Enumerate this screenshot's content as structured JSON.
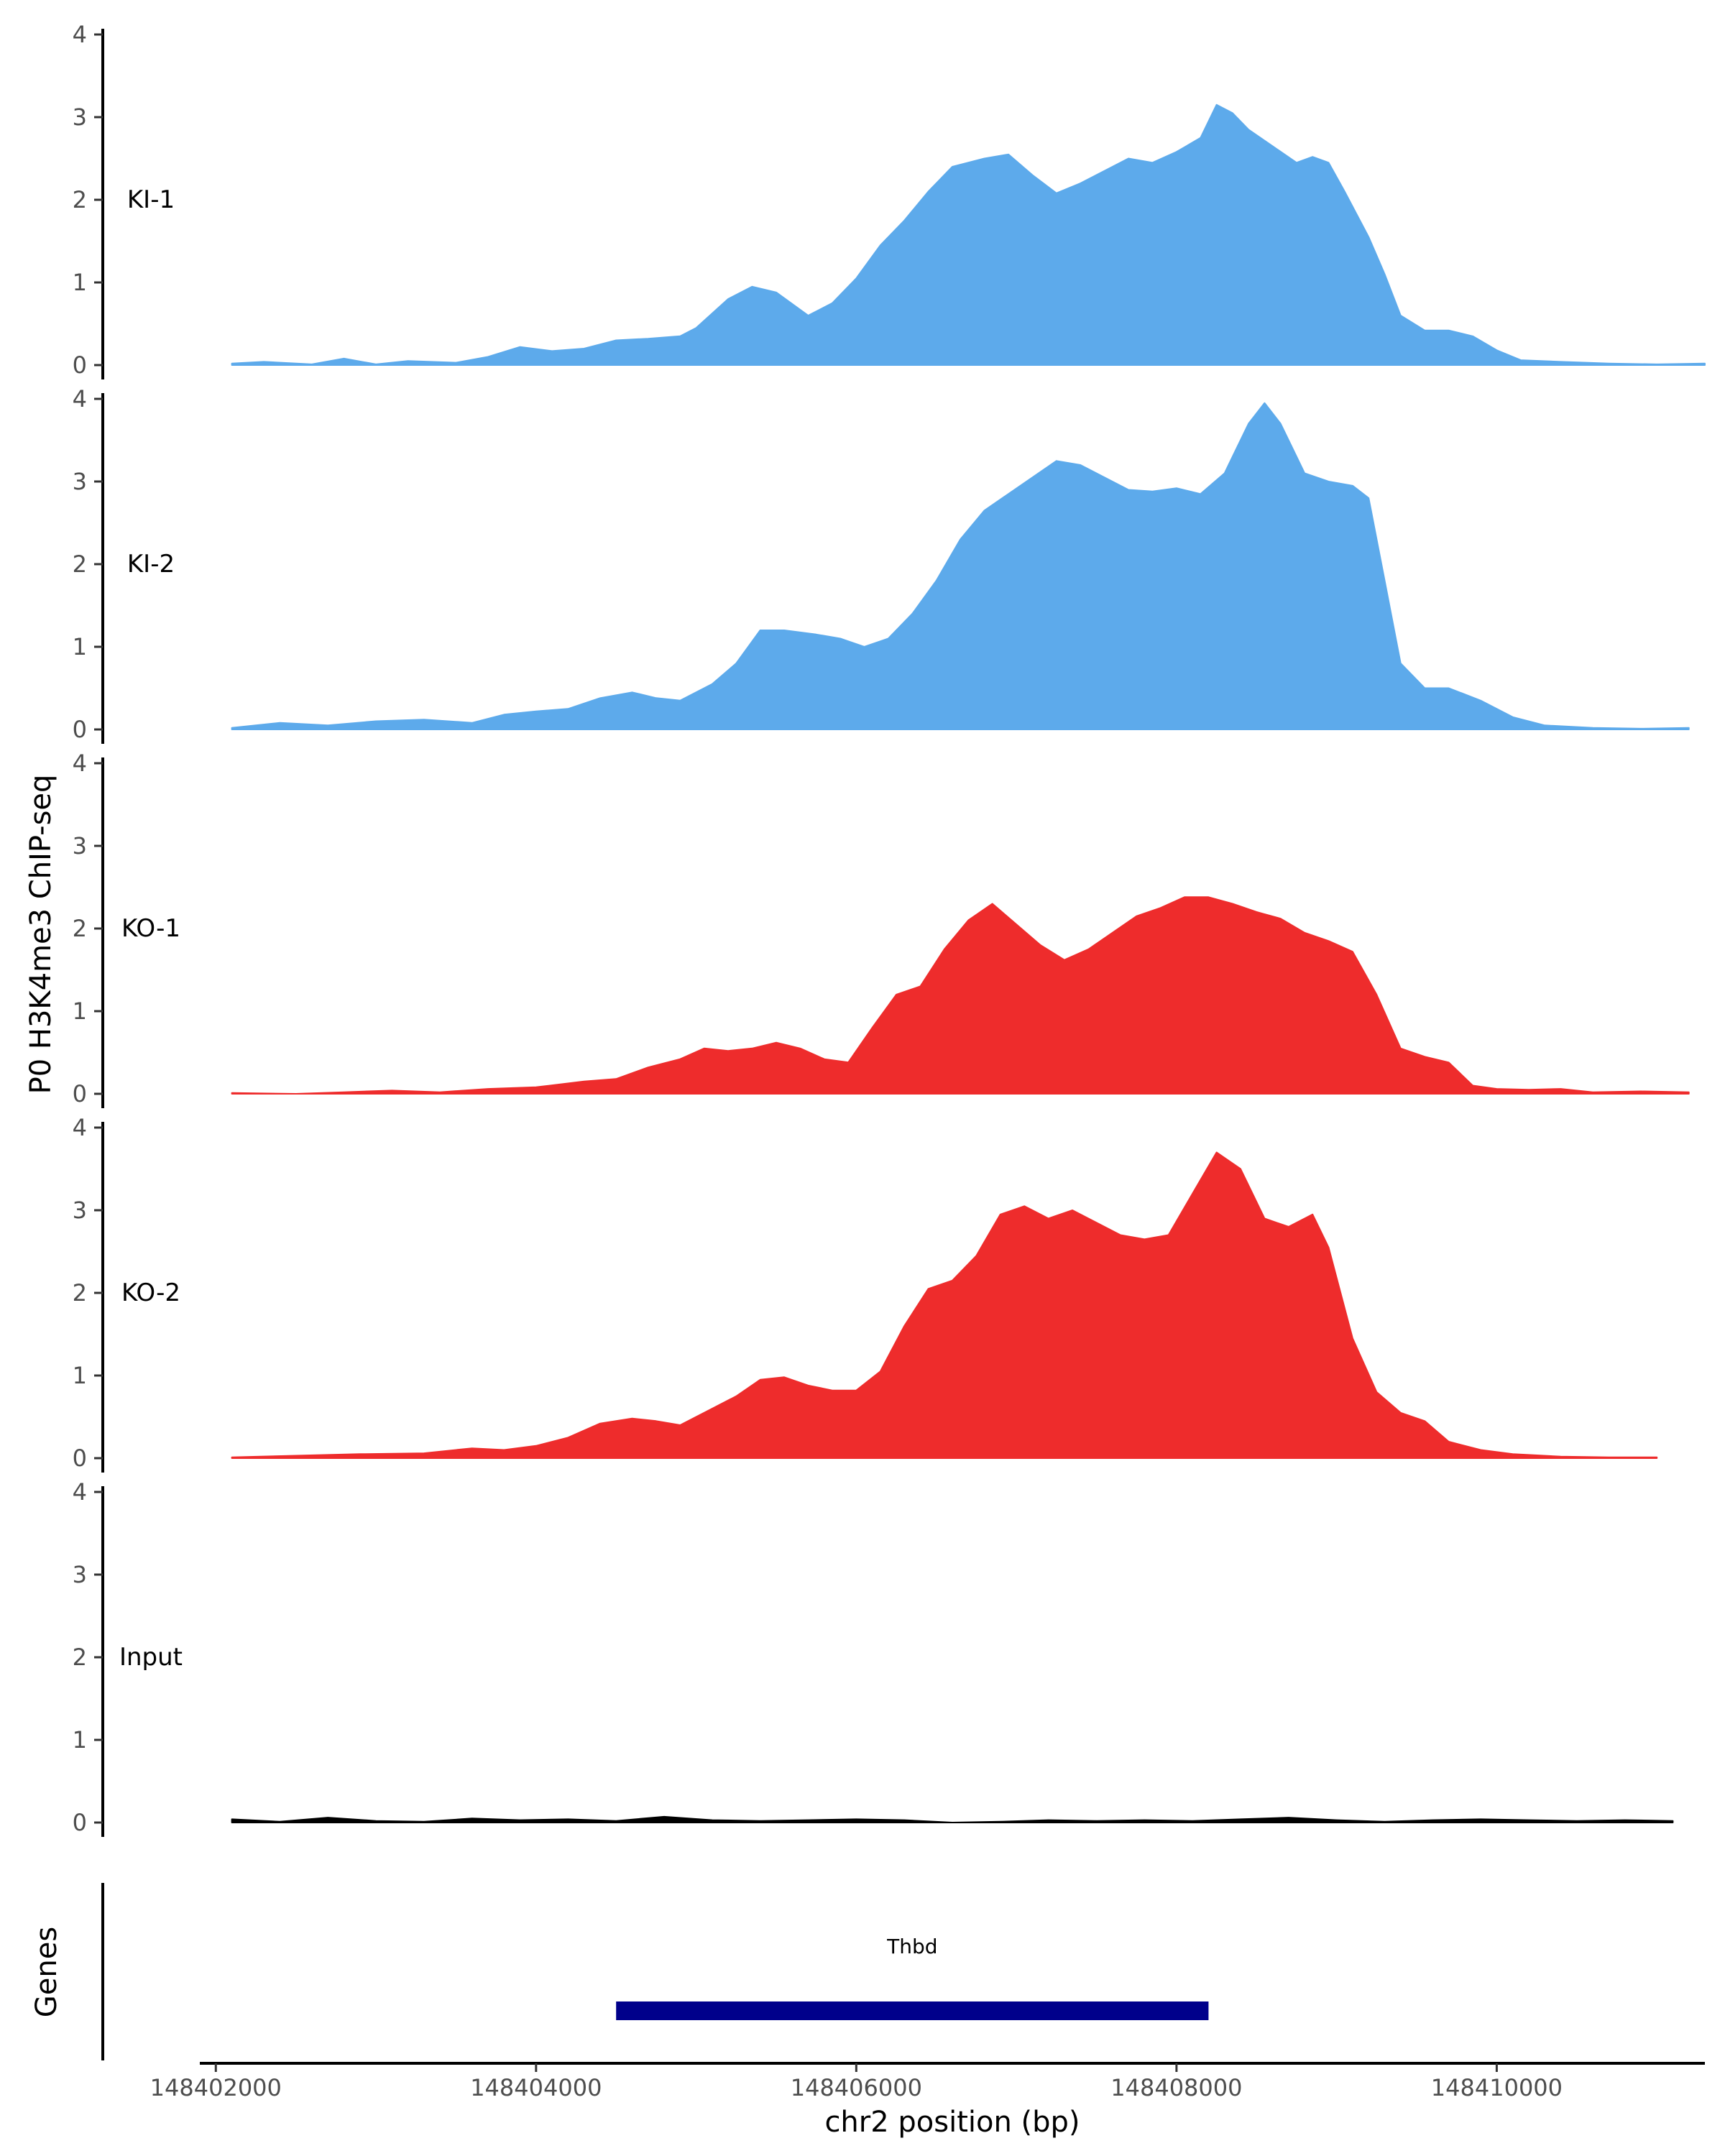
{
  "chart_data": {
    "type": "area",
    "ylabel": "P0 H3K4me3 ChIP-seq",
    "xlabel": "chr2 position (bp)",
    "ylim": [
      0,
      4
    ],
    "yticks": [
      "0",
      "1",
      "2",
      "3",
      "4"
    ],
    "xlim": [
      148401900,
      148411300
    ],
    "xticks": [
      {
        "value": 148402000,
        "label": "148402000"
      },
      {
        "value": 148404000,
        "label": "148404000"
      },
      {
        "value": 148406000,
        "label": "148406000"
      },
      {
        "value": 148408000,
        "label": "148408000"
      },
      {
        "value": 148410000,
        "label": "148410000"
      }
    ],
    "tracks": [
      {
        "name": "KI-1",
        "color": "#5DAAEB",
        "points": [
          [
            148402100,
            0.02
          ],
          [
            148402300,
            0.04
          ],
          [
            148402600,
            0.01
          ],
          [
            148402800,
            0.08
          ],
          [
            148403000,
            0.01
          ],
          [
            148403200,
            0.05
          ],
          [
            148403500,
            0.03
          ],
          [
            148403700,
            0.1
          ],
          [
            148403900,
            0.22
          ],
          [
            148404100,
            0.17
          ],
          [
            148404300,
            0.2
          ],
          [
            148404500,
            0.3
          ],
          [
            148404700,
            0.32
          ],
          [
            148404900,
            0.35
          ],
          [
            148405000,
            0.45
          ],
          [
            148405200,
            0.8
          ],
          [
            148405350,
            0.95
          ],
          [
            148405500,
            0.88
          ],
          [
            148405700,
            0.6
          ],
          [
            148405850,
            0.75
          ],
          [
            148406000,
            1.05
          ],
          [
            148406150,
            1.45
          ],
          [
            148406300,
            1.75
          ],
          [
            148406450,
            2.1
          ],
          [
            148406600,
            2.4
          ],
          [
            148406800,
            2.5
          ],
          [
            148406950,
            2.55
          ],
          [
            148407100,
            2.3
          ],
          [
            148407250,
            2.08
          ],
          [
            148407400,
            2.2
          ],
          [
            148407550,
            2.35
          ],
          [
            148407700,
            2.5
          ],
          [
            148407850,
            2.45
          ],
          [
            148408000,
            2.58
          ],
          [
            148408150,
            2.75
          ],
          [
            148408250,
            3.15
          ],
          [
            148408350,
            3.05
          ],
          [
            148408450,
            2.85
          ],
          [
            148408600,
            2.65
          ],
          [
            148408750,
            2.45
          ],
          [
            148408850,
            2.52
          ],
          [
            148408950,
            2.45
          ],
          [
            148409050,
            2.1
          ],
          [
            148409200,
            1.55
          ],
          [
            148409300,
            1.1
          ],
          [
            148409400,
            0.6
          ],
          [
            148409550,
            0.42
          ],
          [
            148409700,
            0.42
          ],
          [
            148409850,
            0.35
          ],
          [
            148410000,
            0.18
          ],
          [
            148410150,
            0.06
          ],
          [
            148410400,
            0.04
          ],
          [
            148410700,
            0.02
          ],
          [
            148411000,
            0.01
          ],
          [
            148411300,
            0.02
          ]
        ]
      },
      {
        "name": "KI-2",
        "color": "#5DAAEB",
        "points": [
          [
            148402100,
            0.02
          ],
          [
            148402400,
            0.08
          ],
          [
            148402700,
            0.05
          ],
          [
            148403000,
            0.1
          ],
          [
            148403300,
            0.12
          ],
          [
            148403600,
            0.08
          ],
          [
            148403800,
            0.18
          ],
          [
            148404000,
            0.22
          ],
          [
            148404200,
            0.25
          ],
          [
            148404400,
            0.38
          ],
          [
            148404600,
            0.45
          ],
          [
            148404750,
            0.38
          ],
          [
            148404900,
            0.35
          ],
          [
            148405100,
            0.55
          ],
          [
            148405250,
            0.8
          ],
          [
            148405400,
            1.2
          ],
          [
            148405550,
            1.2
          ],
          [
            148405750,
            1.15
          ],
          [
            148405900,
            1.1
          ],
          [
            148406050,
            1.0
          ],
          [
            148406200,
            1.1
          ],
          [
            148406350,
            1.4
          ],
          [
            148406500,
            1.8
          ],
          [
            148406650,
            2.3
          ],
          [
            148406800,
            2.65
          ],
          [
            148406950,
            2.85
          ],
          [
            148407100,
            3.05
          ],
          [
            148407250,
            3.25
          ],
          [
            148407400,
            3.2
          ],
          [
            148407550,
            3.05
          ],
          [
            148407700,
            2.9
          ],
          [
            148407850,
            2.88
          ],
          [
            148408000,
            2.92
          ],
          [
            148408150,
            2.85
          ],
          [
            148408300,
            3.1
          ],
          [
            148408450,
            3.7
          ],
          [
            148408550,
            3.95
          ],
          [
            148408650,
            3.7
          ],
          [
            148408800,
            3.1
          ],
          [
            148408950,
            3.0
          ],
          [
            148409100,
            2.95
          ],
          [
            148409200,
            2.8
          ],
          [
            148409300,
            1.8
          ],
          [
            148409400,
            0.8
          ],
          [
            148409550,
            0.5
          ],
          [
            148409700,
            0.5
          ],
          [
            148409900,
            0.35
          ],
          [
            148410100,
            0.15
          ],
          [
            148410300,
            0.05
          ],
          [
            148410600,
            0.02
          ],
          [
            148410900,
            0.01
          ],
          [
            148411200,
            0.02
          ]
        ]
      },
      {
        "name": "KO-1",
        "color": "#EE2C2C",
        "points": [
          [
            148402100,
            0.01
          ],
          [
            148402500,
            0.0
          ],
          [
            148402800,
            0.02
          ],
          [
            148403100,
            0.04
          ],
          [
            148403400,
            0.02
          ],
          [
            148403700,
            0.06
          ],
          [
            148404000,
            0.08
          ],
          [
            148404300,
            0.15
          ],
          [
            148404500,
            0.18
          ],
          [
            148404700,
            0.32
          ],
          [
            148404900,
            0.42
          ],
          [
            148405050,
            0.55
          ],
          [
            148405200,
            0.52
          ],
          [
            148405350,
            0.55
          ],
          [
            148405500,
            0.62
          ],
          [
            148405650,
            0.55
          ],
          [
            148405800,
            0.42
          ],
          [
            148405950,
            0.38
          ],
          [
            148406100,
            0.8
          ],
          [
            148406250,
            1.2
          ],
          [
            148406400,
            1.3
          ],
          [
            148406550,
            1.75
          ],
          [
            148406700,
            2.1
          ],
          [
            148406850,
            2.3
          ],
          [
            148407000,
            2.05
          ],
          [
            148407150,
            1.8
          ],
          [
            148407300,
            1.62
          ],
          [
            148407450,
            1.75
          ],
          [
            148407600,
            1.95
          ],
          [
            148407750,
            2.15
          ],
          [
            148407900,
            2.25
          ],
          [
            148408050,
            2.38
          ],
          [
            148408200,
            2.38
          ],
          [
            148408350,
            2.3
          ],
          [
            148408500,
            2.2
          ],
          [
            148408650,
            2.12
          ],
          [
            148408800,
            1.95
          ],
          [
            148408950,
            1.85
          ],
          [
            148409100,
            1.72
          ],
          [
            148409250,
            1.2
          ],
          [
            148409400,
            0.55
          ],
          [
            148409550,
            0.45
          ],
          [
            148409700,
            0.38
          ],
          [
            148409850,
            0.1
          ],
          [
            148410000,
            0.06
          ],
          [
            148410200,
            0.05
          ],
          [
            148410400,
            0.06
          ],
          [
            148410600,
            0.02
          ],
          [
            148410900,
            0.03
          ],
          [
            148411200,
            0.02
          ]
        ]
      },
      {
        "name": "KO-2",
        "color": "#EE2C2C",
        "points": [
          [
            148402100,
            0.01
          ],
          [
            148402500,
            0.03
          ],
          [
            148402900,
            0.05
          ],
          [
            148403300,
            0.06
          ],
          [
            148403600,
            0.12
          ],
          [
            148403800,
            0.1
          ],
          [
            148404000,
            0.15
          ],
          [
            148404200,
            0.25
          ],
          [
            148404400,
            0.42
          ],
          [
            148404600,
            0.48
          ],
          [
            148404750,
            0.45
          ],
          [
            148404900,
            0.4
          ],
          [
            148405100,
            0.6
          ],
          [
            148405250,
            0.75
          ],
          [
            148405400,
            0.95
          ],
          [
            148405550,
            0.98
          ],
          [
            148405700,
            0.88
          ],
          [
            148405850,
            0.82
          ],
          [
            148406000,
            0.82
          ],
          [
            148406150,
            1.05
          ],
          [
            148406300,
            1.6
          ],
          [
            148406450,
            2.05
          ],
          [
            148406600,
            2.15
          ],
          [
            148406750,
            2.45
          ],
          [
            148406900,
            2.95
          ],
          [
            148407050,
            3.05
          ],
          [
            148407200,
            2.9
          ],
          [
            148407350,
            3.0
          ],
          [
            148407500,
            2.85
          ],
          [
            148407650,
            2.7
          ],
          [
            148407800,
            2.65
          ],
          [
            148407950,
            2.7
          ],
          [
            148408100,
            3.2
          ],
          [
            148408250,
            3.7
          ],
          [
            148408400,
            3.5
          ],
          [
            148408550,
            2.9
          ],
          [
            148408700,
            2.8
          ],
          [
            148408850,
            2.95
          ],
          [
            148408950,
            2.55
          ],
          [
            148409100,
            1.45
          ],
          [
            148409250,
            0.8
          ],
          [
            148409400,
            0.55
          ],
          [
            148409550,
            0.45
          ],
          [
            148409700,
            0.2
          ],
          [
            148409900,
            0.1
          ],
          [
            148410100,
            0.05
          ],
          [
            148410400,
            0.02
          ],
          [
            148410700,
            0.01
          ],
          [
            148411000,
            0.01
          ]
        ]
      },
      {
        "name": "Input",
        "color": "#000000",
        "points": [
          [
            148402100,
            0.04
          ],
          [
            148402400,
            0.01
          ],
          [
            148402700,
            0.06
          ],
          [
            148403000,
            0.02
          ],
          [
            148403300,
            0.01
          ],
          [
            148403600,
            0.05
          ],
          [
            148403900,
            0.03
          ],
          [
            148404200,
            0.04
          ],
          [
            148404500,
            0.02
          ],
          [
            148404800,
            0.07
          ],
          [
            148405100,
            0.03
          ],
          [
            148405400,
            0.02
          ],
          [
            148405700,
            0.03
          ],
          [
            148406000,
            0.04
          ],
          [
            148406300,
            0.03
          ],
          [
            148406600,
            0.0
          ],
          [
            148406900,
            0.01
          ],
          [
            148407200,
            0.03
          ],
          [
            148407500,
            0.02
          ],
          [
            148407800,
            0.03
          ],
          [
            148408100,
            0.02
          ],
          [
            148408400,
            0.04
          ],
          [
            148408700,
            0.06
          ],
          [
            148409000,
            0.03
          ],
          [
            148409300,
            0.01
          ],
          [
            148409600,
            0.03
          ],
          [
            148409900,
            0.04
          ],
          [
            148410200,
            0.03
          ],
          [
            148410500,
            0.02
          ],
          [
            148410800,
            0.03
          ],
          [
            148411100,
            0.02
          ]
        ]
      }
    ],
    "genes_panel": {
      "ylabel": "Genes",
      "genes": [
        {
          "name": "Thbd",
          "start": 148404500,
          "end": 148408200,
          "color": "#00008B"
        }
      ]
    }
  }
}
